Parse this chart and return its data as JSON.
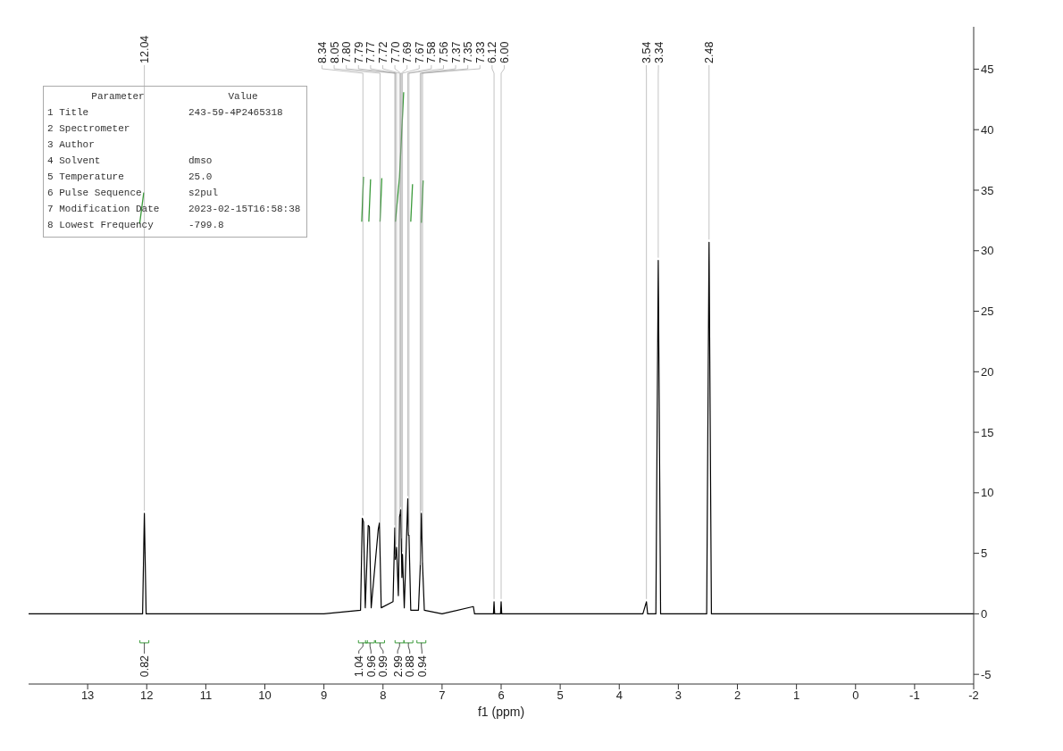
{
  "chart_data": {
    "type": "line",
    "xlabel": "f1 (ppm)",
    "xlim": [
      14,
      -2
    ],
    "xticks": [
      13,
      12,
      11,
      10,
      9,
      8,
      7,
      6,
      5,
      4,
      3,
      2,
      1,
      0,
      -1,
      -2
    ],
    "ylim": [
      -5.8,
      48.5
    ],
    "yticks": [
      -5,
      0,
      5,
      10,
      15,
      20,
      25,
      30,
      35,
      40,
      45
    ],
    "grid": false,
    "legend": false,
    "marker": "none",
    "line_style": "solid",
    "series": [
      {
        "color": "#000000",
        "x": [
          14,
          12.5,
          12.07,
          12.04,
          12.01,
          9,
          8.38,
          8.35,
          8.33,
          8.3,
          8.25,
          8.23,
          8.2,
          8.08,
          8.06,
          8.03,
          7.83,
          7.8,
          7.79,
          7.77,
          7.74,
          7.72,
          7.7,
          7.69,
          7.68,
          7.67,
          7.64,
          7.58,
          7.57,
          7.56,
          7.53,
          7.4,
          7.37,
          7.35,
          7.33,
          7.3,
          7,
          6.47,
          6.45,
          6.13,
          6.12,
          6.11,
          6.01,
          6,
          5.99,
          3.6,
          3.54,
          3.52,
          3.38,
          3.34,
          3.3,
          2.52,
          2.48,
          2.44,
          0,
          -2
        ],
        "values": [
          0,
          0,
          0,
          8.3,
          0,
          0,
          0.3,
          7.9,
          7.6,
          0.5,
          7.3,
          7.2,
          0.5,
          7,
          7.5,
          0.5,
          1,
          7.1,
          4.5,
          5.5,
          1.5,
          8,
          8.6,
          6,
          3,
          4.9,
          0.5,
          9.5,
          6.5,
          6.5,
          0.3,
          0.3,
          3.8,
          8.3,
          4,
          0.3,
          0,
          0.6,
          0,
          0,
          1,
          0,
          0,
          1,
          0,
          0,
          1,
          0,
          0,
          29.2,
          0,
          0,
          30.7,
          0,
          0,
          0
        ]
      },
      {
        "color": "#3a9a3a",
        "x": [
          12.12,
          12.05,
          12.04,
          8.36,
          8.33,
          8.32,
          8.24,
          8.21,
          8.2,
          8.05,
          8.02,
          8.01,
          7.79,
          7.72,
          7.65,
          7.64,
          7.53,
          7.5,
          7.49,
          7.35,
          7.32
        ],
        "values": [
          32.2,
          34.8,
          null,
          32.4,
          36.1,
          null,
          32.4,
          35.9,
          null,
          32.4,
          36,
          null,
          32.4,
          36.1,
          43.1,
          null,
          32.4,
          35.5,
          null,
          32.3,
          35.8
        ]
      }
    ],
    "annotations": [
      {
        "text": "12.04",
        "x": 12.04,
        "y": 8.3
      },
      {
        "text": "8.34",
        "x": 8.34,
        "y": 7.9
      },
      {
        "text": "8.05",
        "x": 8.05,
        "y": 7
      },
      {
        "text": "7.80",
        "x": 7.8,
        "y": 7.1
      },
      {
        "text": "7.79",
        "x": 7.79,
        "y": 4.5
      },
      {
        "text": "7.77",
        "x": 7.77,
        "y": 5.5
      },
      {
        "text": "7.72",
        "x": 7.72,
        "y": 8
      },
      {
        "text": "7.70",
        "x": 7.7,
        "y": 8.6
      },
      {
        "text": "7.69",
        "x": 7.69,
        "y": 6
      },
      {
        "text": "7.67",
        "x": 7.67,
        "y": 4.9
      },
      {
        "text": "7.58",
        "x": 7.58,
        "y": 9.5
      },
      {
        "text": "7.56",
        "x": 7.56,
        "y": 6.5
      },
      {
        "text": "7.37",
        "x": 7.37,
        "y": 3.8
      },
      {
        "text": "7.35",
        "x": 7.35,
        "y": 8.3
      },
      {
        "text": "7.33",
        "x": 7.33,
        "y": 4
      },
      {
        "text": "6.12",
        "x": 6.12,
        "y": 1
      },
      {
        "text": "6.00",
        "x": 6,
        "y": 1
      },
      {
        "text": "3.54",
        "x": 3.54,
        "y": 1
      },
      {
        "text": "3.34",
        "x": 3.34,
        "y": 29.2
      },
      {
        "text": "2.48",
        "x": 2.48,
        "y": 30.7
      },
      {
        "text": "0.82",
        "x": 12.04,
        "y": -2.4
      },
      {
        "text": "1.04",
        "x": 8.34,
        "y": -2.4
      },
      {
        "text": "0.96",
        "x": 8.22,
        "y": -2.4
      },
      {
        "text": "0.99",
        "x": 8.05,
        "y": -2.4
      },
      {
        "text": "2.99",
        "x": 7.72,
        "y": -2.4
      },
      {
        "text": "0.88",
        "x": 7.57,
        "y": -2.4
      },
      {
        "text": "0.94",
        "x": 7.35,
        "y": -2.4
      },
      "Parameter\tValue",
      "1 Title\t243-59-4P2465318",
      "2 Spectrometer\t",
      "3 Author\t",
      "4 Solvent\tdmso",
      "5 Temperature\t25.0",
      "6 Pulse Sequence\ts2pul",
      "7 Modification Date\t2023-02-15T16:58:38",
      "8 Lowest Frequency\t-799.8"
    ]
  }
}
